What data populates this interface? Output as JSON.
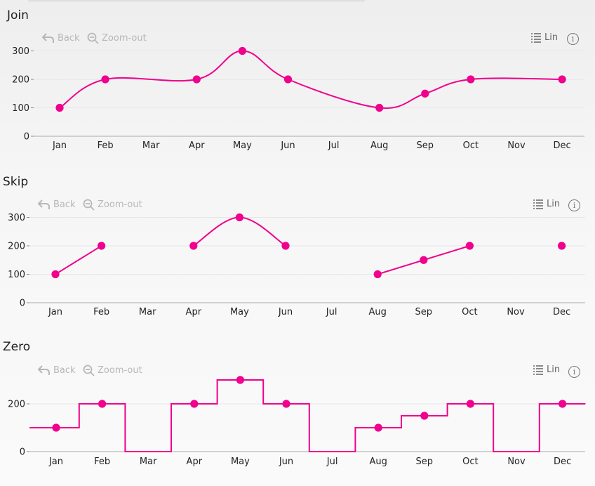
{
  "toolbar": {
    "back_label": "Back",
    "zoom_out_label": "Zoom-out",
    "scale_label": "Lin",
    "info_glyph": "i",
    "icons": [
      "back-arrow-icon",
      "zoom-out-icon",
      "list-icon",
      "info-icon"
    ]
  },
  "colors": {
    "series": "#f0008c",
    "axis": "#b9b9b9",
    "grid": "#e6e6e6"
  },
  "chart_data": [
    {
      "title": "Join",
      "type": "line",
      "missing_mode": "join",
      "curve": "smooth",
      "categories": [
        "Jan",
        "Feb",
        "Mar",
        "Apr",
        "May",
        "Jun",
        "Jul",
        "Aug",
        "Sep",
        "Oct",
        "Nov",
        "Dec"
      ],
      "values": [
        100,
        200,
        null,
        200,
        300,
        200,
        null,
        100,
        150,
        200,
        null,
        200
      ],
      "yticks": [
        0,
        100,
        200,
        300
      ],
      "ylim": [
        0,
        300
      ],
      "grid": true
    },
    {
      "title": "Skip",
      "type": "line",
      "missing_mode": "skip",
      "curve": "smooth",
      "categories": [
        "Jan",
        "Feb",
        "Mar",
        "Apr",
        "May",
        "Jun",
        "Jul",
        "Aug",
        "Sep",
        "Oct",
        "Nov",
        "Dec"
      ],
      "values": [
        100,
        200,
        null,
        200,
        300,
        200,
        null,
        100,
        150,
        200,
        null,
        200
      ],
      "yticks": [
        0,
        100,
        200,
        300
      ],
      "ylim": [
        0,
        300
      ],
      "grid": true
    },
    {
      "title": "Zero",
      "type": "line",
      "missing_mode": "zero",
      "curve": "step",
      "categories": [
        "Jan",
        "Feb",
        "Mar",
        "Apr",
        "May",
        "Jun",
        "Jul",
        "Aug",
        "Sep",
        "Oct",
        "Nov",
        "Dec"
      ],
      "values": [
        100,
        200,
        null,
        200,
        300,
        200,
        null,
        100,
        150,
        200,
        null,
        200
      ],
      "yticks": [
        0,
        200
      ],
      "ylim": [
        0,
        300
      ],
      "grid": true
    }
  ]
}
